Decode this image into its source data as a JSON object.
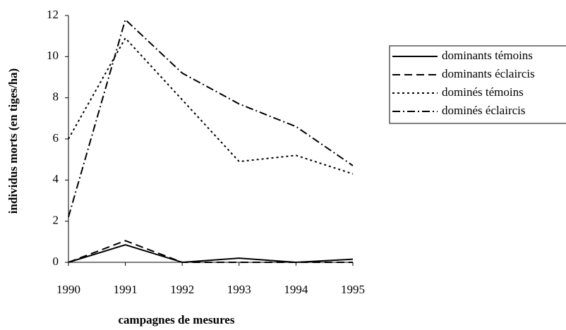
{
  "chart_data": {
    "type": "line",
    "x_label": "campagnes de mesures",
    "y_label": "individus morts (en tiges/ha)",
    "x": [
      1990,
      1991,
      1992,
      1993,
      1994,
      1995
    ],
    "xlim": [
      1990,
      1995
    ],
    "xticks": [
      1990,
      1991,
      1992,
      1993,
      1994,
      1995
    ],
    "ylim": [
      0,
      12
    ],
    "yticks": [
      0,
      2,
      4,
      6,
      8,
      10,
      12
    ],
    "legend": "right",
    "series": [
      {
        "name": "dominants témoins",
        "color": "#000000",
        "dash": "solid",
        "values": [
          0,
          0.85,
          0,
          0.2,
          0,
          0.15
        ]
      },
      {
        "name": "dominants éclaircis",
        "color": "#000000",
        "dash": "dashed",
        "values": [
          0,
          1.05,
          0,
          0,
          0,
          0
        ]
      },
      {
        "name": "dominés témoins",
        "color": "#000000",
        "dash": "dotted",
        "values": [
          6,
          10.9,
          7.9,
          4.9,
          5.2,
          4.3
        ]
      },
      {
        "name": "dominés éclaircis",
        "color": "#000000",
        "dash": "dashdot",
        "values": [
          2.2,
          11.8,
          9.2,
          7.7,
          6.6,
          4.7
        ]
      }
    ]
  }
}
